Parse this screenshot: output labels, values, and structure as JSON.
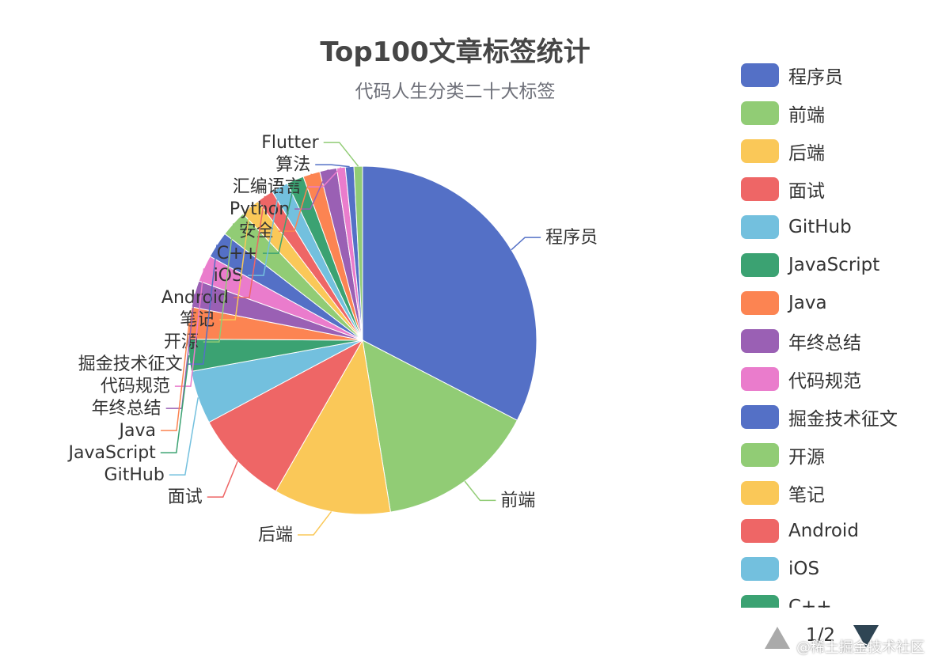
{
  "chart_data": {
    "type": "pie",
    "title": "Top100文章标签统计",
    "subtitle": "代码人生分类二十大标签",
    "series": [
      {
        "label": "程序员",
        "value": 33,
        "color": "#5470c6"
      },
      {
        "label": "前端",
        "value": 15,
        "color": "#91cc75"
      },
      {
        "label": "后端",
        "value": 11,
        "color": "#fac858"
      },
      {
        "label": "面试",
        "value": 9,
        "color": "#ee6666"
      },
      {
        "label": "GitHub",
        "value": 5,
        "color": "#73c0de"
      },
      {
        "label": "JavaScript",
        "value": 3,
        "color": "#3ba272"
      },
      {
        "label": "Java",
        "value": 3,
        "color": "#fc8452"
      },
      {
        "label": "年终总结",
        "value": 2.5,
        "color": "#9a60b4"
      },
      {
        "label": "代码规范",
        "value": 2.5,
        "color": "#ea7ccc"
      },
      {
        "label": "掘金技术征文",
        "value": 2.5,
        "color": "#5470c6"
      },
      {
        "label": "开源",
        "value": 2.5,
        "color": "#91cc75"
      },
      {
        "label": "笔记",
        "value": 1.8,
        "color": "#fac858"
      },
      {
        "label": "Android",
        "value": 1.6,
        "color": "#ee6666"
      },
      {
        "label": "iOS",
        "value": 1.6,
        "color": "#73c0de"
      },
      {
        "label": "C++",
        "value": 1.6,
        "color": "#3ba272"
      },
      {
        "label": "安全",
        "value": 1.6,
        "color": "#fc8452"
      },
      {
        "label": "Python",
        "value": 1.6,
        "color": "#9a60b4"
      },
      {
        "label": "汇编语言",
        "value": 0.8,
        "color": "#ea7ccc"
      },
      {
        "label": "算法",
        "value": 0.8,
        "color": "#5470c6"
      },
      {
        "label": "Flutter",
        "value": 0.8,
        "color": "#91cc75"
      }
    ],
    "legend": {
      "position": "right",
      "visible_items": [
        "程序员",
        "前端",
        "后端",
        "面试",
        "GitHub",
        "JavaScript",
        "Java",
        "年终总结",
        "代码规范",
        "掘金技术征文",
        "开源",
        "笔记",
        "Android",
        "iOS",
        "C++"
      ],
      "page": "1/2"
    }
  },
  "watermark": "@稀土掘金技术社区"
}
